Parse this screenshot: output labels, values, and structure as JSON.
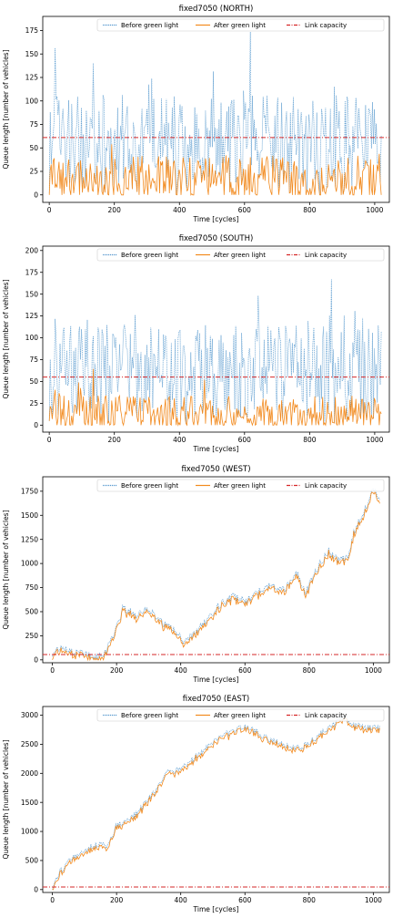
{
  "charts": [
    {
      "id": "north",
      "title": "fixed7050 (NORTH)",
      "xlabel": "Time [cycles]",
      "ylabel": "Queue length [number of vehicles]",
      "xlim": [
        -20,
        1045
      ],
      "ylim": [
        -8,
        190
      ],
      "xticks": [
        0,
        200,
        400,
        600,
        800,
        1000
      ],
      "yticks": [
        0,
        25,
        50,
        75,
        100,
        125,
        150,
        175
      ],
      "capacity": 61,
      "legend": [
        "Before green light",
        "After green light",
        "Link capacity"
      ],
      "profile": {
        "type": "random",
        "before_base": 62,
        "before_amp": 45,
        "after_base": 18,
        "after_amp": 25,
        "seed": 11
      }
    },
    {
      "id": "south",
      "title": "fixed7050 (SOUTH)",
      "xlabel": "Time [cycles]",
      "ylabel": "Queue length [number of vehicles]",
      "xlim": [
        -20,
        1045
      ],
      "ylim": [
        -8,
        205
      ],
      "xticks": [
        0,
        200,
        400,
        600,
        800,
        1000
      ],
      "yticks": [
        0,
        25,
        50,
        75,
        100,
        125,
        150,
        175,
        200
      ],
      "capacity": 55,
      "legend": [
        "Before green light",
        "After green light",
        "Link capacity"
      ],
      "profile": {
        "type": "random",
        "before_base": 70,
        "before_amp": 45,
        "after_base": 14,
        "after_amp": 20,
        "seed": 29
      }
    },
    {
      "id": "west",
      "title": "fixed7050 (WEST)",
      "xlabel": "Time [cycles]",
      "ylabel": "Queue length [number of vehicles]",
      "xlim": [
        -30,
        1050
      ],
      "ylim": [
        -30,
        1900
      ],
      "xticks": [
        0,
        200,
        400,
        600,
        800,
        1000
      ],
      "yticks": [
        0,
        250,
        500,
        750,
        1000,
        1250,
        1500,
        1750
      ],
      "capacity": 55,
      "legend": [
        "Before green light",
        "After green light",
        "Link capacity"
      ],
      "profile": {
        "type": "trend",
        "points": [
          [
            0,
            40
          ],
          [
            20,
            120
          ],
          [
            60,
            90
          ],
          [
            100,
            60
          ],
          [
            130,
            40
          ],
          [
            160,
            30
          ],
          [
            190,
            260
          ],
          [
            220,
            540
          ],
          [
            260,
            470
          ],
          [
            300,
            540
          ],
          [
            340,
            390
          ],
          [
            380,
            300
          ],
          [
            410,
            180
          ],
          [
            440,
            260
          ],
          [
            480,
            420
          ],
          [
            520,
            560
          ],
          [
            560,
            660
          ],
          [
            600,
            610
          ],
          [
            640,
            700
          ],
          [
            680,
            780
          ],
          [
            720,
            720
          ],
          [
            760,
            910
          ],
          [
            790,
            690
          ],
          [
            820,
            920
          ],
          [
            860,
            1130
          ],
          [
            890,
            1040
          ],
          [
            920,
            1060
          ],
          [
            940,
            1330
          ],
          [
            970,
            1530
          ],
          [
            1000,
            1760
          ],
          [
            1020,
            1680
          ]
        ],
        "noise": 40,
        "gap": 30,
        "seed": 5
      }
    },
    {
      "id": "east",
      "title": "fixed7050 (EAST)",
      "xlabel": "Time [cycles]",
      "ylabel": "Queue length [number of vehicles]",
      "xlim": [
        -30,
        1050
      ],
      "ylim": [
        -50,
        3150
      ],
      "xticks": [
        0,
        200,
        400,
        600,
        800,
        1000
      ],
      "yticks": [
        0,
        500,
        1000,
        1500,
        2000,
        2500,
        3000
      ],
      "capacity": 45,
      "legend": [
        "Before green light",
        "After green light",
        "Link capacity"
      ],
      "profile": {
        "type": "trend",
        "points": [
          [
            0,
            20
          ],
          [
            20,
            280
          ],
          [
            50,
            480
          ],
          [
            90,
            650
          ],
          [
            140,
            780
          ],
          [
            170,
            760
          ],
          [
            200,
            1100
          ],
          [
            240,
            1200
          ],
          [
            280,
            1420
          ],
          [
            320,
            1700
          ],
          [
            360,
            2040
          ],
          [
            400,
            2060
          ],
          [
            440,
            2260
          ],
          [
            480,
            2460
          ],
          [
            520,
            2620
          ],
          [
            560,
            2720
          ],
          [
            600,
            2800
          ],
          [
            640,
            2700
          ],
          [
            680,
            2560
          ],
          [
            720,
            2500
          ],
          [
            760,
            2420
          ],
          [
            800,
            2520
          ],
          [
            840,
            2700
          ],
          [
            880,
            2860
          ],
          [
            910,
            2980
          ],
          [
            940,
            2820
          ],
          [
            980,
            2800
          ],
          [
            1020,
            2780
          ]
        ],
        "noise": 55,
        "gap": 45,
        "seed": 17
      }
    }
  ]
}
